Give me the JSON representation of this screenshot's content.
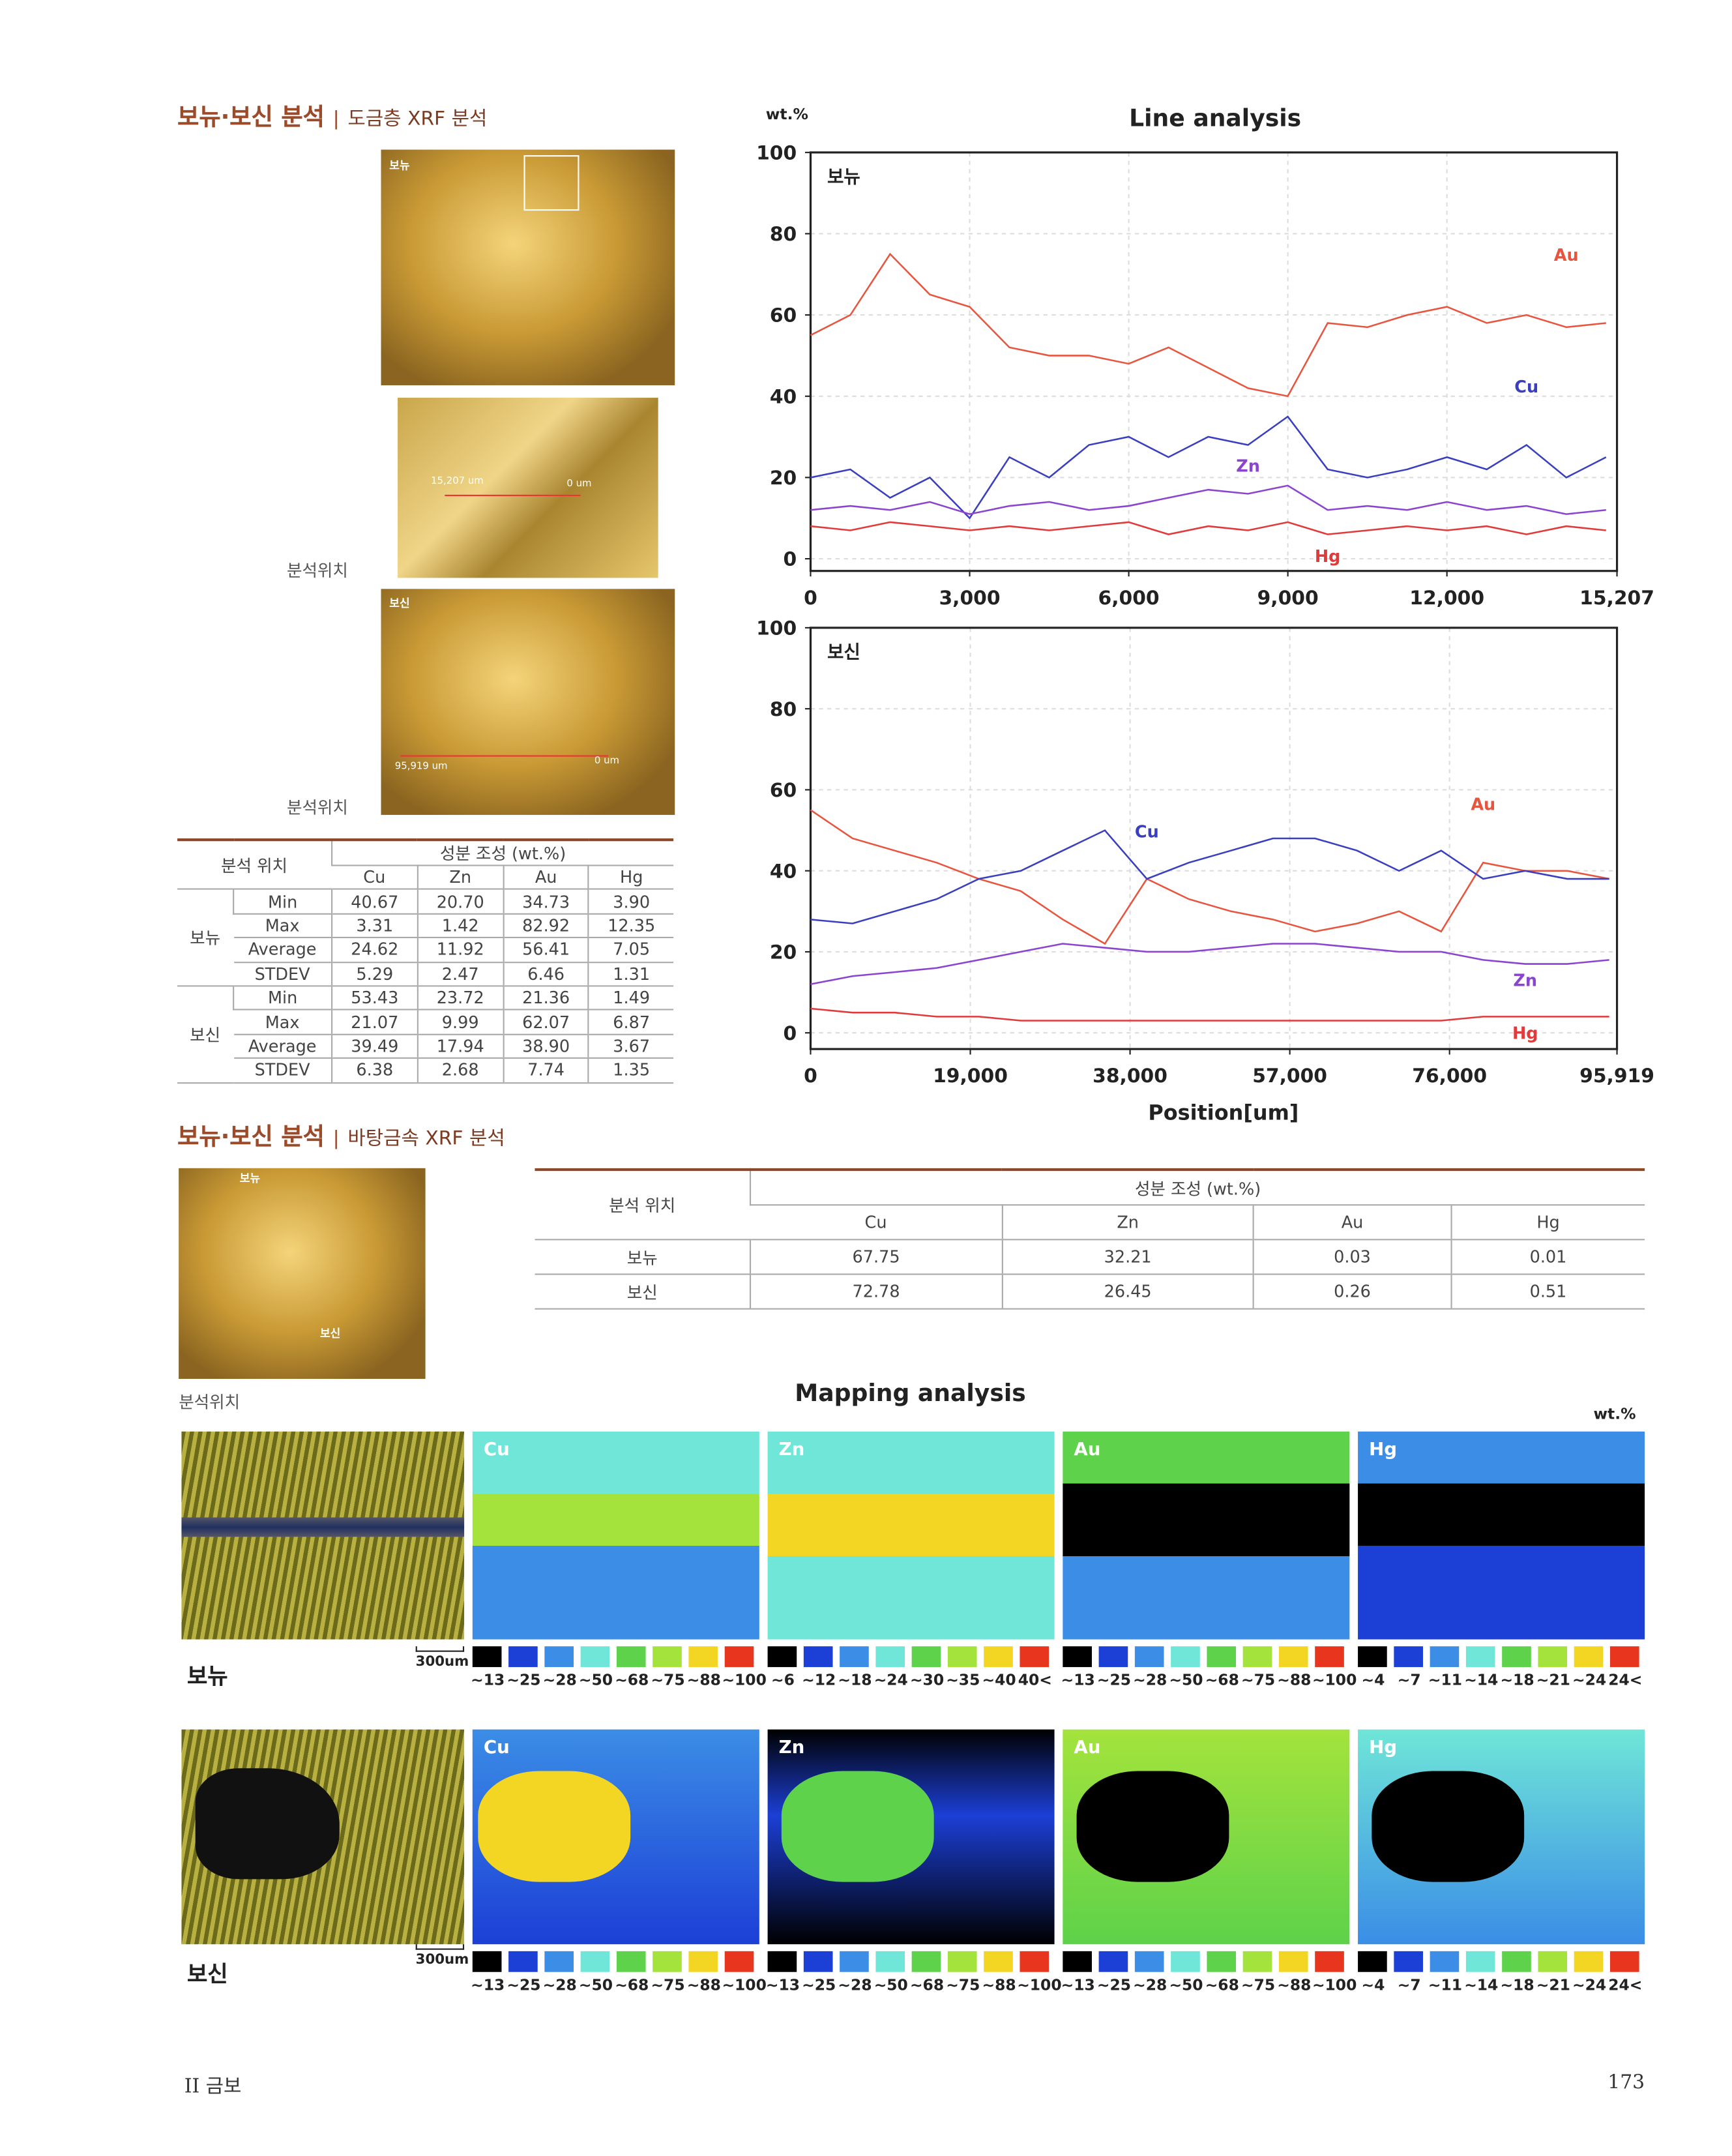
{
  "section1": {
    "title": "보뉴·보신 분석",
    "subtitle": "도금층 XRF 분석"
  },
  "photos1": {
    "top_label": "보뉴",
    "position_label_1": "분석위치",
    "bottom_label": "보신",
    "position_label_2": "분석위치",
    "detail_start": "15,207 um",
    "detail_end": "0 um",
    "bottom_start": "95,919 um",
    "bottom_end": "0 um"
  },
  "table1": {
    "header": {
      "position": "분석 위치",
      "composition": "성분 조성 (wt.%)",
      "columns": [
        "Cu",
        "Zn",
        "Au",
        "Hg"
      ]
    },
    "groups": [
      {
        "name": "보뉴",
        "rows": [
          {
            "stat": "Min",
            "values": [
              "40.67",
              "20.70",
              "34.73",
              "3.90"
            ]
          },
          {
            "stat": "Max",
            "values": [
              "3.31",
              "1.42",
              "82.92",
              "12.35"
            ]
          },
          {
            "stat": "Average",
            "values": [
              "24.62",
              "11.92",
              "56.41",
              "7.05"
            ]
          },
          {
            "stat": "STDEV",
            "values": [
              "5.29",
              "2.47",
              "6.46",
              "1.31"
            ]
          }
        ]
      },
      {
        "name": "보신",
        "rows": [
          {
            "stat": "Min",
            "values": [
              "53.43",
              "23.72",
              "21.36",
              "1.49"
            ]
          },
          {
            "stat": "Max",
            "values": [
              "21.07",
              "9.99",
              "62.07",
              "6.87"
            ]
          },
          {
            "stat": "Average",
            "values": [
              "39.49",
              "17.94",
              "38.90",
              "3.67"
            ]
          },
          {
            "stat": "STDEV",
            "values": [
              "6.38",
              "2.68",
              "7.74",
              "1.35"
            ]
          }
        ]
      }
    ]
  },
  "chart_data": [
    {
      "type": "line",
      "title": "Line analysis",
      "y_label": "wt.%",
      "label": "보뉴",
      "x": [
        0,
        750,
        1500,
        2250,
        3000,
        3750,
        4500,
        5250,
        6000,
        6750,
        7500,
        8250,
        9000,
        9750,
        10500,
        11250,
        12000,
        12750,
        13500,
        14250,
        15000
      ],
      "xlim": [
        0,
        15207
      ],
      "xticks": [
        0,
        {
          "value": 3000,
          "label": "3,000"
        },
        {
          "value": 6000,
          "label": "6,000"
        },
        {
          "value": 9000,
          "label": "9,000"
        },
        {
          "value": 12000,
          "label": "12,000"
        },
        {
          "value": 15207,
          "label": "15,207"
        }
      ],
      "ylim": [
        -3,
        100
      ],
      "yticks": [
        0,
        20,
        40,
        60,
        80,
        100
      ],
      "grid": true,
      "series": [
        {
          "name": "Au",
          "color": "#e8553f",
          "values": [
            55,
            60,
            75,
            65,
            62,
            52,
            50,
            50,
            48,
            52,
            47,
            42,
            40,
            58,
            57,
            60,
            62,
            58,
            60,
            57,
            58
          ]
        },
        {
          "name": "Cu",
          "color": "#3a3fc0",
          "values": [
            20,
            22,
            15,
            20,
            10,
            25,
            20,
            28,
            30,
            25,
            30,
            28,
            35,
            22,
            20,
            22,
            25,
            22,
            28,
            20,
            25
          ]
        },
        {
          "name": "Zn",
          "color": "#8a44d0",
          "values": [
            12,
            13,
            12,
            14,
            11,
            13,
            14,
            12,
            13,
            15,
            17,
            16,
            18,
            12,
            13,
            12,
            14,
            12,
            13,
            11,
            12
          ]
        },
        {
          "name": "Hg",
          "color": "#e03a3a",
          "values": [
            8,
            7,
            9,
            8,
            7,
            8,
            7,
            8,
            9,
            6,
            8,
            7,
            9,
            6,
            7,
            8,
            7,
            8,
            6,
            8,
            7
          ]
        }
      ]
    },
    {
      "type": "line",
      "label": "보신",
      "x_label": "Position[um]",
      "x": [
        0,
        5000,
        10000,
        15000,
        20000,
        25000,
        30000,
        35000,
        40000,
        45000,
        50000,
        55000,
        60000,
        65000,
        70000,
        75000,
        80000,
        85000,
        90000,
        95000
      ],
      "xlim": [
        0,
        95919
      ],
      "xticks": [
        0,
        {
          "value": 19000,
          "label": "19,000"
        },
        {
          "value": 38000,
          "label": "38,000"
        },
        {
          "value": 57000,
          "label": "57,000"
        },
        {
          "value": 76000,
          "label": "76,000"
        },
        {
          "value": 95919,
          "label": "95,919"
        }
      ],
      "ylim": [
        -4,
        100
      ],
      "yticks": [
        0,
        20,
        40,
        60,
        80,
        100
      ],
      "grid": true,
      "series": [
        {
          "name": "Au",
          "color": "#e8553f",
          "values": [
            55,
            48,
            45,
            42,
            38,
            35,
            28,
            22,
            38,
            33,
            30,
            28,
            25,
            27,
            30,
            25,
            42,
            40,
            40,
            38
          ]
        },
        {
          "name": "Cu",
          "color": "#3a3fc0",
          "values": [
            28,
            27,
            30,
            33,
            38,
            40,
            45,
            50,
            38,
            42,
            45,
            48,
            48,
            45,
            40,
            45,
            38,
            40,
            38,
            38
          ]
        },
        {
          "name": "Zn",
          "color": "#8a44d0",
          "values": [
            12,
            14,
            15,
            16,
            18,
            20,
            22,
            21,
            20,
            20,
            21,
            22,
            22,
            21,
            20,
            20,
            18,
            17,
            17,
            18
          ]
        },
        {
          "name": "Hg",
          "color": "#e03a3a",
          "values": [
            6,
            5,
            5,
            4,
            4,
            3,
            3,
            3,
            3,
            3,
            3,
            3,
            3,
            3,
            3,
            3,
            4,
            4,
            4,
            4
          ]
        }
      ]
    }
  ],
  "section2": {
    "title": "보뉴·보신 분석",
    "subtitle": "바탕금속 XRF 분석"
  },
  "photos2": {
    "top_label": "보뉴",
    "bottom_label": "보신",
    "position_label": "분석위치"
  },
  "table2": {
    "header": {
      "position": "분석 위치",
      "composition": "성분 조성 (wt.%)",
      "columns": [
        "Cu",
        "Zn",
        "Au",
        "Hg"
      ]
    },
    "rows": [
      {
        "name": "보뉴",
        "values": [
          "67.75",
          "32.21",
          "0.03",
          "0.01"
        ]
      },
      {
        "name": "보신",
        "values": [
          "72.78",
          "26.45",
          "0.26",
          "0.51"
        ]
      }
    ]
  },
  "mapping": {
    "title": "Mapping analysis",
    "unit": "wt.%",
    "colors": [
      "#000000",
      "#1c3fd6",
      "#3b8de6",
      "#6fe6d8",
      "#5ed24a",
      "#a4e33c",
      "#f3d524",
      "#e8361e"
    ],
    "rows": [
      {
        "label": "보뉴",
        "scale": "300um",
        "panels": [
          {
            "element": "Cu",
            "legend": [
              "~13",
              "~25",
              "~28",
              "~50",
              "~68",
              "~75",
              "~88",
              "~100"
            ]
          },
          {
            "element": "Zn",
            "legend": [
              "~6",
              "~12",
              "~18",
              "~24",
              "~30",
              "~35",
              "~40",
              "40<"
            ]
          },
          {
            "element": "Au",
            "legend": [
              "~13",
              "~25",
              "~28",
              "~50",
              "~68",
              "~75",
              "~88",
              "~100"
            ]
          },
          {
            "element": "Hg",
            "legend": [
              "~4",
              "~7",
              "~11",
              "~14",
              "~18",
              "~21",
              "~24",
              "24<"
            ]
          }
        ]
      },
      {
        "label": "보신",
        "scale": "300um",
        "panels": [
          {
            "element": "Cu",
            "legend": [
              "~13",
              "~25",
              "~28",
              "~50",
              "~68",
              "~75",
              "~88",
              "~100"
            ]
          },
          {
            "element": "Zn",
            "legend": [
              "~13",
              "~25",
              "~28",
              "~50",
              "~68",
              "~75",
              "~88",
              "~100"
            ]
          },
          {
            "element": "Au",
            "legend": [
              "~13",
              "~25",
              "~28",
              "~50",
              "~68",
              "~75",
              "~88",
              "~100"
            ]
          },
          {
            "element": "Hg",
            "legend": [
              "~4",
              "~7",
              "~11",
              "~14",
              "~18",
              "~21",
              "~24",
              "24<"
            ]
          }
        ]
      }
    ]
  },
  "footer": {
    "chapter": "II 금보",
    "page": "173"
  }
}
